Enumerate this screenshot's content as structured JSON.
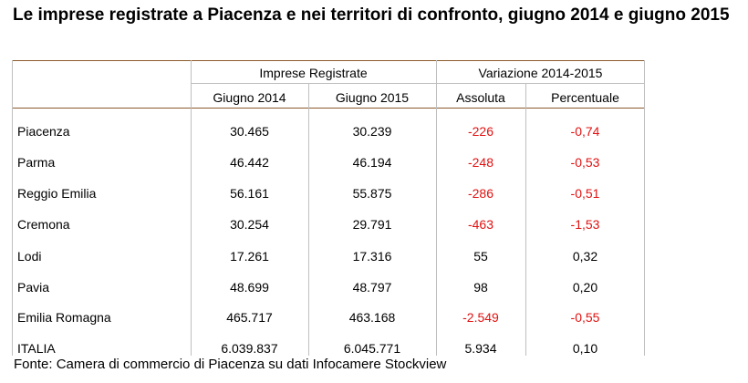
{
  "title": "Le imprese registrate a Piacenza e nei territori di confronto, giugno 2014 e giugno 2015",
  "header": {
    "group1": "Imprese Registrate",
    "group2": "Variazione 2014-2015",
    "col_2014": "Giugno 2014",
    "col_2015": "Giugno 2015",
    "col_abs": "Assoluta",
    "col_pct": "Percentuale"
  },
  "rows": [
    {
      "name": "Piacenza",
      "y2014": "30.465",
      "y2015": "30.239",
      "abs": "-226",
      "pct": "-0,74",
      "neg": true
    },
    {
      "name": "Parma",
      "y2014": "46.442",
      "y2015": "46.194",
      "abs": "-248",
      "pct": "-0,53",
      "neg": true
    },
    {
      "name": "Reggio Emilia",
      "y2014": "56.161",
      "y2015": "55.875",
      "abs": "-286",
      "pct": "-0,51",
      "neg": true
    },
    {
      "name": "Cremona",
      "y2014": "30.254",
      "y2015": "29.791",
      "abs": "-463",
      "pct": "-1,53",
      "neg": true
    },
    {
      "name": "Lodi",
      "y2014": "17.261",
      "y2015": "17.316",
      "abs": "55",
      "pct": "0,32",
      "neg": false
    },
    {
      "name": "Pavia",
      "y2014": "48.699",
      "y2015": "48.797",
      "abs": "98",
      "pct": "0,20",
      "neg": false
    },
    {
      "name": "Emilia Romagna",
      "y2014": "465.717",
      "y2015": "463.168",
      "abs": "-2.549",
      "pct": "-0,55",
      "neg": true
    },
    {
      "name": "ITALIA",
      "y2014": "6.039.837",
      "y2015": "6.045.771",
      "abs": "5.934",
      "pct": "0,10",
      "neg": false
    }
  ],
  "colors": {
    "negative": "#e11111",
    "rule": "#8b5a2b",
    "grid": "#bfbfbf"
  },
  "source": "Fonte: Camera di commercio di Piacenza su dati Infocamere Stockview"
}
